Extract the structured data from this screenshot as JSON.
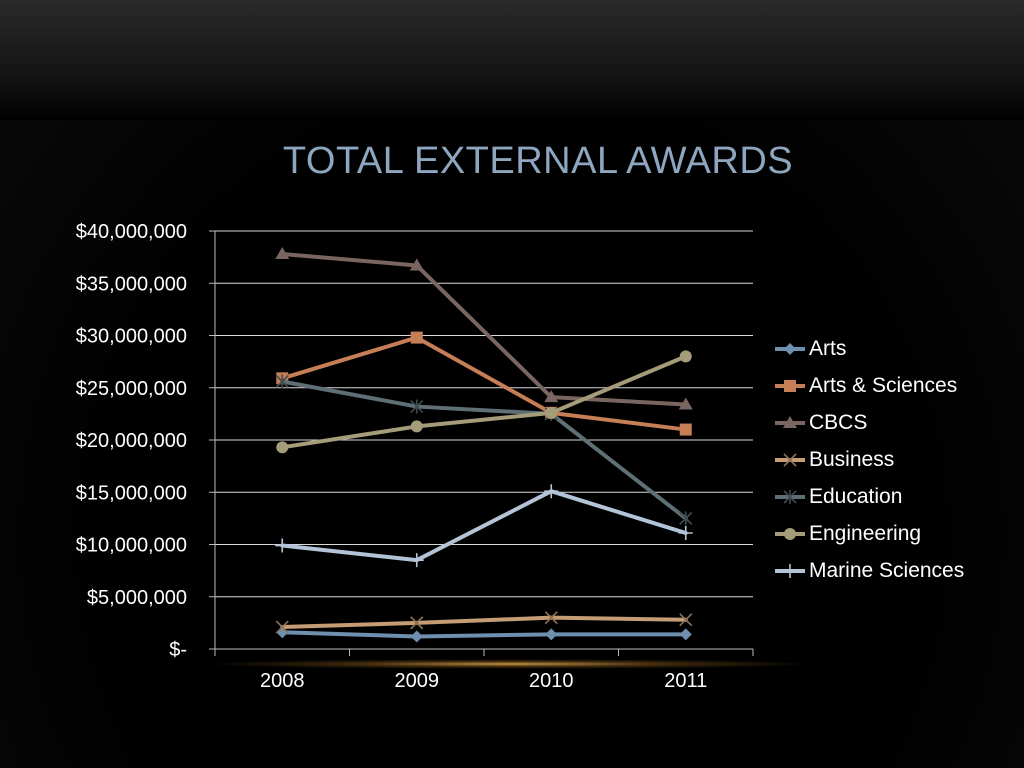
{
  "slide": {
    "title": "TOTAL EXTERNAL AWARDS"
  },
  "chart_data": {
    "type": "line",
    "title": "TOTAL EXTERNAL AWARDS",
    "categories": [
      "2008",
      "2009",
      "2010",
      "2011"
    ],
    "ylim": [
      0,
      40000000
    ],
    "yticks": [
      0,
      5000000,
      10000000,
      15000000,
      20000000,
      25000000,
      30000000,
      35000000,
      40000000
    ],
    "ytick_labels": [
      "$-",
      "$5,000,000",
      "$10,000,000",
      "$15,000,000",
      "$20,000,000",
      "$25,000,000",
      "$30,000,000",
      "$35,000,000",
      "$40,000,000"
    ],
    "grid": true,
    "legend_position": "right",
    "series": [
      {
        "name": "Arts",
        "color": "#6f8fae",
        "marker": "diamond",
        "values": [
          1600000,
          1200000,
          1400000,
          1400000
        ]
      },
      {
        "name": "Arts & Sciences",
        "color": "#c57e55",
        "marker": "square",
        "values": [
          25900000,
          29800000,
          22600000,
          21000000
        ]
      },
      {
        "name": "CBCS",
        "color": "#7a6660",
        "marker": "triangle",
        "values": [
          37800000,
          36700000,
          24100000,
          23400000
        ]
      },
      {
        "name": "Business",
        "color": "#c59c74",
        "marker": "x",
        "values": [
          2100000,
          2500000,
          3000000,
          2800000
        ]
      },
      {
        "name": "Education",
        "color": "#5e6f75",
        "marker": "star",
        "values": [
          25600000,
          23200000,
          22500000,
          12500000
        ]
      },
      {
        "name": "Engineering",
        "color": "#a59c7a",
        "marker": "circle",
        "values": [
          19300000,
          21300000,
          22600000,
          28000000
        ]
      },
      {
        "name": "Marine Sciences",
        "color": "#b4c4d8",
        "marker": "plus",
        "values": [
          9900000,
          8500000,
          15100000,
          11100000
        ]
      }
    ]
  }
}
